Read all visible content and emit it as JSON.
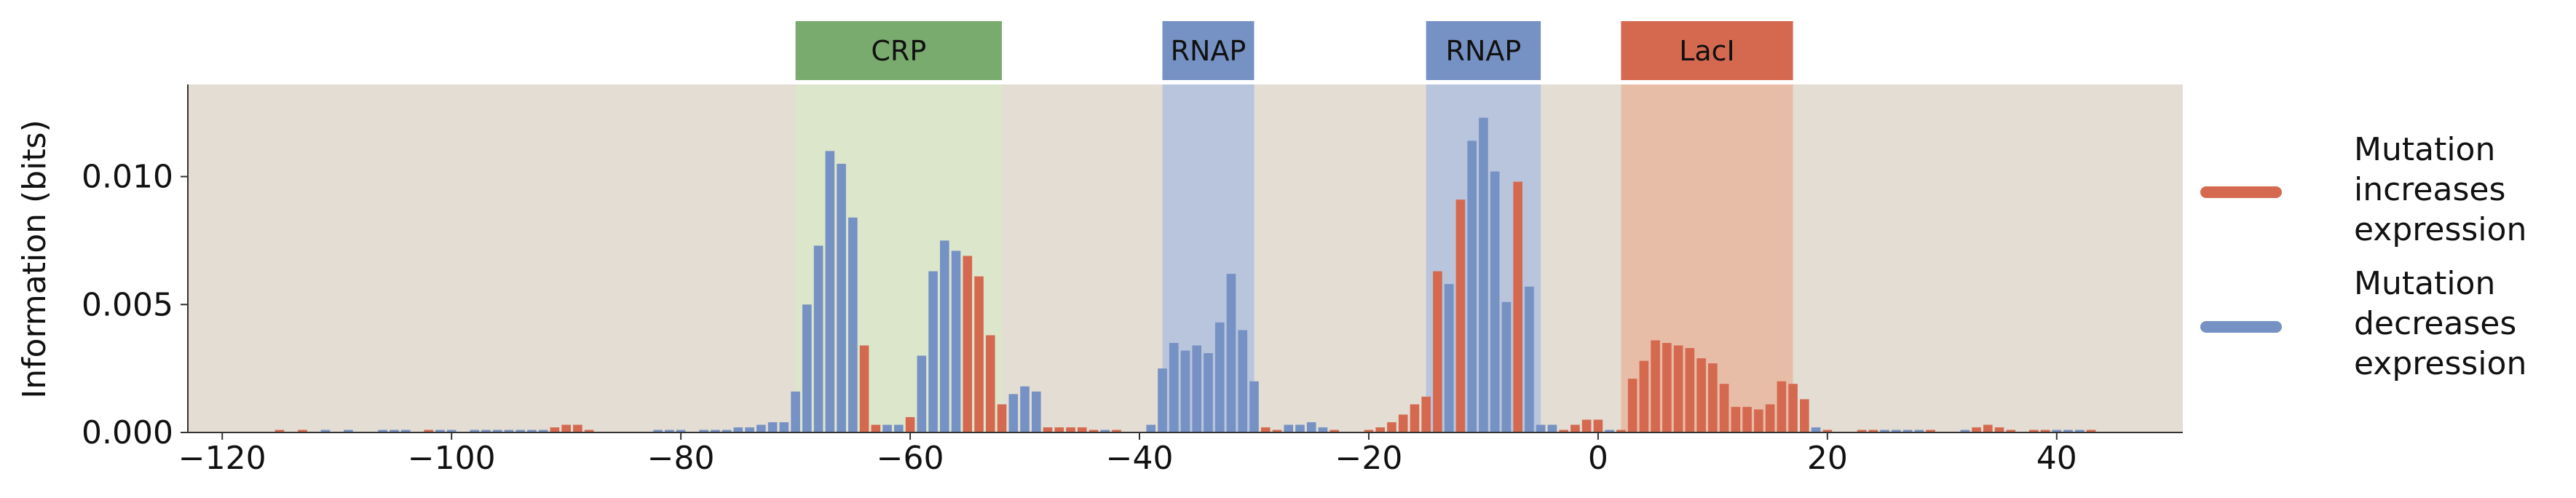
{
  "chart_data": {
    "type": "bar",
    "title": "",
    "xlabel": "",
    "ylabel": "Information (bits)",
    "xlim": [
      -123,
      51
    ],
    "ylim": [
      0,
      0.0136
    ],
    "xticks": [
      "−120",
      "−100",
      "−80",
      "−60",
      "−40",
      "−20",
      "0",
      "20",
      "40"
    ],
    "xtick_values": [
      -120,
      -100,
      -80,
      -60,
      -40,
      -20,
      0,
      20,
      40
    ],
    "yticks": [
      "0.000",
      "0.005",
      "0.010"
    ],
    "ytick_values": [
      0.0,
      0.005,
      0.01
    ],
    "grid": false,
    "background_color": "#e3ddd3",
    "legend_position": "right",
    "series_colors": {
      "increases": "#d4694f",
      "decreases": "#7691c3"
    },
    "legend": [
      {
        "key": "increases",
        "lines": [
          "Mutation",
          "increases",
          "expression"
        ]
      },
      {
        "key": "decreases",
        "lines": [
          "Mutation",
          "decreases",
          "expression"
        ]
      }
    ],
    "regions": [
      {
        "label": "CRP",
        "x0": -70,
        "x1": -52,
        "color": "#7aab6e",
        "fill": "#dce6cb"
      },
      {
        "label": "RNAP",
        "x0": -38,
        "x1": -30,
        "color": "#7691c3",
        "fill": "#b8c5dd"
      },
      {
        "label": "RNAP",
        "x0": -15,
        "x1": -5,
        "color": "#7691c3",
        "fill": "#b8c5dd"
      },
      {
        "label": "LacI",
        "x0": 2,
        "x1": 17,
        "color": "#d4694f",
        "fill": "#e7bda8"
      }
    ],
    "bars": [
      {
        "x": -115,
        "value": 0.0001,
        "dir": "increases"
      },
      {
        "x": -113,
        "value": 0.0001,
        "dir": "increases"
      },
      {
        "x": -111,
        "value": 0.0001,
        "dir": "decreases"
      },
      {
        "x": -109,
        "value": 0.0001,
        "dir": "decreases"
      },
      {
        "x": -106,
        "value": 0.0001,
        "dir": "decreases"
      },
      {
        "x": -105,
        "value": 0.0001,
        "dir": "decreases"
      },
      {
        "x": -104,
        "value": 0.0001,
        "dir": "decreases"
      },
      {
        "x": -102,
        "value": 0.0001,
        "dir": "increases"
      },
      {
        "x": -101,
        "value": 0.0001,
        "dir": "decreases"
      },
      {
        "x": -100,
        "value": 0.0001,
        "dir": "decreases"
      },
      {
        "x": -98,
        "value": 0.0001,
        "dir": "decreases"
      },
      {
        "x": -97,
        "value": 0.0001,
        "dir": "decreases"
      },
      {
        "x": -96,
        "value": 0.0001,
        "dir": "decreases"
      },
      {
        "x": -95,
        "value": 0.0001,
        "dir": "decreases"
      },
      {
        "x": -94,
        "value": 0.0001,
        "dir": "decreases"
      },
      {
        "x": -93,
        "value": 0.0001,
        "dir": "decreases"
      },
      {
        "x": -92,
        "value": 0.0001,
        "dir": "decreases"
      },
      {
        "x": -91,
        "value": 0.0002,
        "dir": "increases"
      },
      {
        "x": -90,
        "value": 0.0003,
        "dir": "increases"
      },
      {
        "x": -89,
        "value": 0.0003,
        "dir": "increases"
      },
      {
        "x": -88,
        "value": 0.0001,
        "dir": "increases"
      },
      {
        "x": -82,
        "value": 0.0001,
        "dir": "decreases"
      },
      {
        "x": -81,
        "value": 0.0001,
        "dir": "decreases"
      },
      {
        "x": -80,
        "value": 0.0001,
        "dir": "decreases"
      },
      {
        "x": -78,
        "value": 0.0001,
        "dir": "decreases"
      },
      {
        "x": -77,
        "value": 0.0001,
        "dir": "decreases"
      },
      {
        "x": -76,
        "value": 0.0001,
        "dir": "decreases"
      },
      {
        "x": -75,
        "value": 0.0002,
        "dir": "decreases"
      },
      {
        "x": -74,
        "value": 0.0002,
        "dir": "decreases"
      },
      {
        "x": -73,
        "value": 0.0003,
        "dir": "decreases"
      },
      {
        "x": -72,
        "value": 0.0004,
        "dir": "decreases"
      },
      {
        "x": -71,
        "value": 0.0004,
        "dir": "decreases"
      },
      {
        "x": -70,
        "value": 0.0016,
        "dir": "decreases"
      },
      {
        "x": -69,
        "value": 0.005,
        "dir": "decreases"
      },
      {
        "x": -68,
        "value": 0.0073,
        "dir": "decreases"
      },
      {
        "x": -67,
        "value": 0.011,
        "dir": "decreases"
      },
      {
        "x": -66,
        "value": 0.0105,
        "dir": "decreases"
      },
      {
        "x": -65,
        "value": 0.0084,
        "dir": "decreases"
      },
      {
        "x": -64,
        "value": 0.0034,
        "dir": "increases"
      },
      {
        "x": -63,
        "value": 0.0003,
        "dir": "increases"
      },
      {
        "x": -62,
        "value": 0.0003,
        "dir": "decreases"
      },
      {
        "x": -61,
        "value": 0.0003,
        "dir": "decreases"
      },
      {
        "x": -60,
        "value": 0.0006,
        "dir": "increases"
      },
      {
        "x": -59,
        "value": 0.003,
        "dir": "decreases"
      },
      {
        "x": -58,
        "value": 0.0063,
        "dir": "decreases"
      },
      {
        "x": -57,
        "value": 0.0075,
        "dir": "decreases"
      },
      {
        "x": -56,
        "value": 0.0071,
        "dir": "decreases"
      },
      {
        "x": -55,
        "value": 0.0069,
        "dir": "increases"
      },
      {
        "x": -54,
        "value": 0.0061,
        "dir": "increases"
      },
      {
        "x": -53,
        "value": 0.0038,
        "dir": "increases"
      },
      {
        "x": -52,
        "value": 0.0011,
        "dir": "increases"
      },
      {
        "x": -51,
        "value": 0.0015,
        "dir": "decreases"
      },
      {
        "x": -50,
        "value": 0.0018,
        "dir": "decreases"
      },
      {
        "x": -49,
        "value": 0.0016,
        "dir": "decreases"
      },
      {
        "x": -48,
        "value": 0.0002,
        "dir": "increases"
      },
      {
        "x": -47,
        "value": 0.0002,
        "dir": "increases"
      },
      {
        "x": -46,
        "value": 0.0002,
        "dir": "increases"
      },
      {
        "x": -45,
        "value": 0.0002,
        "dir": "increases"
      },
      {
        "x": -44,
        "value": 0.0001,
        "dir": "increases"
      },
      {
        "x": -43,
        "value": 0.0001,
        "dir": "decreases"
      },
      {
        "x": -42,
        "value": 0.0001,
        "dir": "increases"
      },
      {
        "x": -39,
        "value": 0.0003,
        "dir": "decreases"
      },
      {
        "x": -38,
        "value": 0.0025,
        "dir": "decreases"
      },
      {
        "x": -37,
        "value": 0.0035,
        "dir": "decreases"
      },
      {
        "x": -36,
        "value": 0.0032,
        "dir": "decreases"
      },
      {
        "x": -35,
        "value": 0.0034,
        "dir": "decreases"
      },
      {
        "x": -34,
        "value": 0.0031,
        "dir": "decreases"
      },
      {
        "x": -33,
        "value": 0.0043,
        "dir": "decreases"
      },
      {
        "x": -32,
        "value": 0.0062,
        "dir": "decreases"
      },
      {
        "x": -31,
        "value": 0.004,
        "dir": "decreases"
      },
      {
        "x": -30,
        "value": 0.002,
        "dir": "decreases"
      },
      {
        "x": -29,
        "value": 0.0002,
        "dir": "increases"
      },
      {
        "x": -28,
        "value": 0.0001,
        "dir": "increases"
      },
      {
        "x": -27,
        "value": 0.0003,
        "dir": "decreases"
      },
      {
        "x": -26,
        "value": 0.0003,
        "dir": "decreases"
      },
      {
        "x": -25,
        "value": 0.0004,
        "dir": "decreases"
      },
      {
        "x": -24,
        "value": 0.0002,
        "dir": "decreases"
      },
      {
        "x": -23,
        "value": 0.0001,
        "dir": "increases"
      },
      {
        "x": -20,
        "value": 0.0001,
        "dir": "increases"
      },
      {
        "x": -19,
        "value": 0.0002,
        "dir": "increases"
      },
      {
        "x": -18,
        "value": 0.0004,
        "dir": "increases"
      },
      {
        "x": -17,
        "value": 0.0007,
        "dir": "increases"
      },
      {
        "x": -16,
        "value": 0.0011,
        "dir": "increases"
      },
      {
        "x": -15,
        "value": 0.0014,
        "dir": "increases"
      },
      {
        "x": -14,
        "value": 0.0063,
        "dir": "increases"
      },
      {
        "x": -13,
        "value": 0.0058,
        "dir": "decreases"
      },
      {
        "x": -12,
        "value": 0.0091,
        "dir": "increases"
      },
      {
        "x": -11,
        "value": 0.0114,
        "dir": "decreases"
      },
      {
        "x": -10,
        "value": 0.0123,
        "dir": "decreases"
      },
      {
        "x": -9,
        "value": 0.0102,
        "dir": "decreases"
      },
      {
        "x": -8,
        "value": 0.0051,
        "dir": "decreases"
      },
      {
        "x": -7,
        "value": 0.0098,
        "dir": "increases"
      },
      {
        "x": -6,
        "value": 0.0057,
        "dir": "decreases"
      },
      {
        "x": -5,
        "value": 0.0003,
        "dir": "decreases"
      },
      {
        "x": -4,
        "value": 0.0003,
        "dir": "decreases"
      },
      {
        "x": -3,
        "value": 0.0001,
        "dir": "increases"
      },
      {
        "x": -2,
        "value": 0.0003,
        "dir": "increases"
      },
      {
        "x": -1,
        "value": 0.0005,
        "dir": "increases"
      },
      {
        "x": 0,
        "value": 0.0005,
        "dir": "increases"
      },
      {
        "x": 1,
        "value": 0.0001,
        "dir": "decreases"
      },
      {
        "x": 2,
        "value": 0.0001,
        "dir": "increases"
      },
      {
        "x": 3,
        "value": 0.0021,
        "dir": "increases"
      },
      {
        "x": 4,
        "value": 0.0028,
        "dir": "increases"
      },
      {
        "x": 5,
        "value": 0.0036,
        "dir": "increases"
      },
      {
        "x": 6,
        "value": 0.0035,
        "dir": "increases"
      },
      {
        "x": 7,
        "value": 0.0034,
        "dir": "increases"
      },
      {
        "x": 8,
        "value": 0.0033,
        "dir": "increases"
      },
      {
        "x": 9,
        "value": 0.0029,
        "dir": "increases"
      },
      {
        "x": 10,
        "value": 0.0027,
        "dir": "increases"
      },
      {
        "x": 11,
        "value": 0.0019,
        "dir": "increases"
      },
      {
        "x": 12,
        "value": 0.001,
        "dir": "increases"
      },
      {
        "x": 13,
        "value": 0.001,
        "dir": "increases"
      },
      {
        "x": 14,
        "value": 0.0009,
        "dir": "increases"
      },
      {
        "x": 15,
        "value": 0.0011,
        "dir": "increases"
      },
      {
        "x": 16,
        "value": 0.002,
        "dir": "increases"
      },
      {
        "x": 17,
        "value": 0.0019,
        "dir": "increases"
      },
      {
        "x": 18,
        "value": 0.0013,
        "dir": "increases"
      },
      {
        "x": 19,
        "value": 0.0002,
        "dir": "decreases"
      },
      {
        "x": 20,
        "value": 0.0001,
        "dir": "increases"
      },
      {
        "x": 23,
        "value": 0.0001,
        "dir": "increases"
      },
      {
        "x": 24,
        "value": 0.0001,
        "dir": "increases"
      },
      {
        "x": 25,
        "value": 0.0001,
        "dir": "decreases"
      },
      {
        "x": 26,
        "value": 0.0001,
        "dir": "decreases"
      },
      {
        "x": 27,
        "value": 0.0001,
        "dir": "decreases"
      },
      {
        "x": 28,
        "value": 0.0001,
        "dir": "decreases"
      },
      {
        "x": 29,
        "value": 0.0001,
        "dir": "increases"
      },
      {
        "x": 32,
        "value": 0.0001,
        "dir": "decreases"
      },
      {
        "x": 33,
        "value": 0.0002,
        "dir": "increases"
      },
      {
        "x": 34,
        "value": 0.0003,
        "dir": "increases"
      },
      {
        "x": 35,
        "value": 0.0002,
        "dir": "increases"
      },
      {
        "x": 36,
        "value": 0.0001,
        "dir": "increases"
      },
      {
        "x": 38,
        "value": 0.0001,
        "dir": "increases"
      },
      {
        "x": 39,
        "value": 0.0001,
        "dir": "increases"
      },
      {
        "x": 40,
        "value": 0.0001,
        "dir": "decreases"
      },
      {
        "x": 41,
        "value": 0.0001,
        "dir": "decreases"
      },
      {
        "x": 42,
        "value": 0.0001,
        "dir": "decreases"
      },
      {
        "x": 43,
        "value": 0.0001,
        "dir": "increases"
      }
    ]
  }
}
